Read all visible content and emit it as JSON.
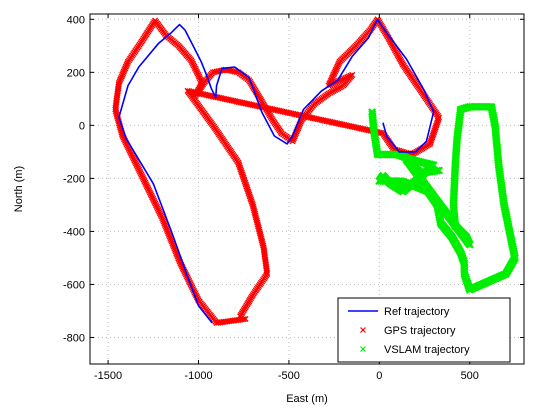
{
  "chart_data": {
    "type": "scatter",
    "xlabel": "East (m)",
    "ylabel": "North (m)",
    "xlim": [
      -1600,
      800
    ],
    "ylim": [
      -900,
      420
    ],
    "xticks": [
      -1500,
      -1000,
      -500,
      0,
      500
    ],
    "yticks": [
      400,
      200,
      0,
      -200,
      -400,
      -600,
      -800
    ],
    "xtick_labels": [
      "-1500",
      "-1000",
      "-500",
      "0",
      "500"
    ],
    "ytick_labels": [
      "400",
      "200",
      "0",
      "-200",
      "-400",
      "-600",
      "-800"
    ],
    "grid": true,
    "legend_position": "bottom-right",
    "series": [
      {
        "name": "Ref trajectory",
        "style": "line",
        "color": "#0000ff",
        "points": [
          [
            -925,
            -745
          ],
          [
            -1000,
            -680
          ],
          [
            -1050,
            -590
          ],
          [
            -1150,
            -400
          ],
          [
            -1250,
            -220
          ],
          [
            -1400,
            -50
          ],
          [
            -1440,
            30
          ],
          [
            -1390,
            150
          ],
          [
            -1330,
            220
          ],
          [
            -1220,
            310
          ],
          [
            -1150,
            350
          ],
          [
            -1105,
            380
          ],
          [
            -1075,
            360
          ],
          [
            -1030,
            300
          ],
          [
            -985,
            240
          ],
          [
            -950,
            180
          ],
          [
            -930,
            140
          ],
          [
            -905,
            105
          ],
          [
            -900,
            150
          ],
          [
            -870,
            215
          ],
          [
            -800,
            220
          ],
          [
            -720,
            180
          ],
          [
            -650,
            50
          ],
          [
            -580,
            -40
          ],
          [
            -510,
            -70
          ],
          [
            -480,
            -40
          ],
          [
            -420,
            60
          ],
          [
            -320,
            130
          ],
          [
            -230,
            170
          ],
          [
            -150,
            260
          ],
          [
            -60,
            330
          ],
          [
            -10,
            400
          ],
          [
            40,
            350
          ],
          [
            150,
            250
          ],
          [
            250,
            130
          ],
          [
            300,
            50
          ],
          [
            260,
            -60
          ],
          [
            200,
            -100
          ],
          [
            110,
            -100
          ],
          [
            40,
            -40
          ],
          [
            20,
            10
          ]
        ]
      },
      {
        "name": "GPS trajectory",
        "style": "markers",
        "marker": "x",
        "color": "#ff0000",
        "points": [
          [
            -740,
            -730
          ],
          [
            -900,
            -745
          ],
          [
            -1000,
            -660
          ],
          [
            -1100,
            -520
          ],
          [
            -1200,
            -350
          ],
          [
            -1320,
            -180
          ],
          [
            -1420,
            -40
          ],
          [
            -1460,
            60
          ],
          [
            -1440,
            160
          ],
          [
            -1390,
            240
          ],
          [
            -1320,
            310
          ],
          [
            -1240,
            395
          ],
          [
            -1180,
            340
          ],
          [
            -1110,
            300
          ],
          [
            -1040,
            245
          ],
          [
            -980,
            160
          ],
          [
            -1020,
            110
          ],
          [
            -970,
            160
          ],
          [
            -920,
            200
          ],
          [
            -850,
            210
          ],
          [
            -780,
            200
          ],
          [
            -720,
            170
          ],
          [
            -650,
            90
          ],
          [
            -590,
            20
          ],
          [
            -540,
            -30
          ],
          [
            -480,
            -60
          ],
          [
            -430,
            20
          ],
          [
            -360,
            80
          ],
          [
            -280,
            120
          ],
          [
            -200,
            150
          ],
          [
            -150,
            190
          ],
          [
            -280,
            150
          ],
          [
            -220,
            240
          ],
          [
            -130,
            300
          ],
          [
            -50,
            360
          ],
          [
            -10,
            400
          ],
          [
            50,
            330
          ],
          [
            130,
            230
          ],
          [
            240,
            120
          ],
          [
            330,
            30
          ],
          [
            280,
            -70
          ],
          [
            180,
            -110
          ],
          [
            80,
            -90
          ],
          [
            20,
            -30
          ],
          [
            -1060,
            130
          ],
          [
            -920,
            0
          ],
          [
            -780,
            -140
          ],
          [
            -700,
            -300
          ],
          [
            -640,
            -460
          ],
          [
            -620,
            -560
          ],
          [
            -700,
            -640
          ],
          [
            -770,
            -720
          ]
        ]
      },
      {
        "name": "VSLAM trajectory",
        "style": "markers",
        "marker": "x",
        "color": "#00ee00",
        "points": [
          [
            -40,
            50
          ],
          [
            -30,
            -20
          ],
          [
            -10,
            -110
          ],
          [
            100,
            -110
          ],
          [
            180,
            -130
          ],
          [
            300,
            -150
          ],
          [
            200,
            -210
          ],
          [
            130,
            -250
          ],
          [
            60,
            -220
          ],
          [
            20,
            -190
          ],
          [
            0,
            -210
          ],
          [
            120,
            -210
          ],
          [
            200,
            -230
          ],
          [
            270,
            -250
          ],
          [
            320,
            -300
          ],
          [
            340,
            -370
          ],
          [
            400,
            -420
          ],
          [
            450,
            -480
          ],
          [
            470,
            -520
          ],
          [
            470,
            -560
          ],
          [
            500,
            -620
          ],
          [
            600,
            -590
          ],
          [
            700,
            -560
          ],
          [
            750,
            -500
          ],
          [
            720,
            -400
          ],
          [
            690,
            -300
          ],
          [
            660,
            -150
          ],
          [
            640,
            0
          ],
          [
            620,
            70
          ],
          [
            500,
            70
          ],
          [
            450,
            60
          ],
          [
            430,
            -50
          ],
          [
            420,
            -150
          ],
          [
            410,
            -300
          ],
          [
            420,
            -380
          ],
          [
            480,
            -420
          ],
          [
            500,
            -450
          ],
          [
            150,
            -130
          ],
          [
            230,
            -180
          ],
          [
            330,
            -170
          ]
        ]
      }
    ]
  }
}
